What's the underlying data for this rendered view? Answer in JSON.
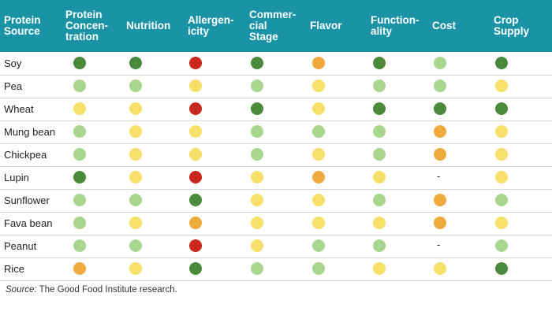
{
  "colors": {
    "header_bg": "#1b93a6",
    "dark_green": "#4a8a3a",
    "light_green": "#a8d68e",
    "yellow": "#f6e06a",
    "orange": "#eeaa3c",
    "red": "#c9281f"
  },
  "columns": [
    "Protein\nSource",
    "Protein\nConcen-\ntration",
    "Nutrition",
    "Allergen-\nicity",
    "Commer-\ncial\nStage",
    "Flavor",
    "Function-\nality",
    "Cost",
    "Crop\nSupply"
  ],
  "rows": [
    {
      "name": "Soy",
      "ratings": [
        "dark_green",
        "dark_green",
        "red",
        "dark_green",
        "orange",
        "dark_green",
        "light_green",
        "dark_green"
      ]
    },
    {
      "name": "Pea",
      "ratings": [
        "light_green",
        "light_green",
        "yellow",
        "light_green",
        "yellow",
        "light_green",
        "light_green",
        "yellow"
      ]
    },
    {
      "name": "Wheat",
      "ratings": [
        "yellow",
        "yellow",
        "red",
        "dark_green",
        "yellow",
        "dark_green",
        "dark_green",
        "dark_green"
      ]
    },
    {
      "name": "Mung bean",
      "ratings": [
        "light_green",
        "yellow",
        "yellow",
        "light_green",
        "light_green",
        "light_green",
        "orange",
        "yellow"
      ]
    },
    {
      "name": "Chickpea",
      "ratings": [
        "light_green",
        "yellow",
        "yellow",
        "light_green",
        "yellow",
        "light_green",
        "orange",
        "yellow"
      ]
    },
    {
      "name": "Lupin",
      "ratings": [
        "dark_green",
        "yellow",
        "red",
        "yellow",
        "orange",
        "yellow",
        "-",
        "yellow"
      ]
    },
    {
      "name": "Sunflower",
      "ratings": [
        "light_green",
        "light_green",
        "dark_green",
        "yellow",
        "yellow",
        "light_green",
        "orange",
        "light_green"
      ]
    },
    {
      "name": "Fava bean",
      "ratings": [
        "light_green",
        "yellow",
        "orange",
        "yellow",
        "yellow",
        "yellow",
        "orange",
        "yellow"
      ]
    },
    {
      "name": "Peanut",
      "ratings": [
        "light_green",
        "light_green",
        "red",
        "yellow",
        "light_green",
        "light_green",
        "-",
        "light_green"
      ]
    },
    {
      "name": "Rice",
      "ratings": [
        "orange",
        "yellow",
        "dark_green",
        "light_green",
        "light_green",
        "yellow",
        "yellow",
        "dark_green"
      ]
    }
  ],
  "source": {
    "label": "Source:",
    "text": " The Good Food Institute research."
  }
}
